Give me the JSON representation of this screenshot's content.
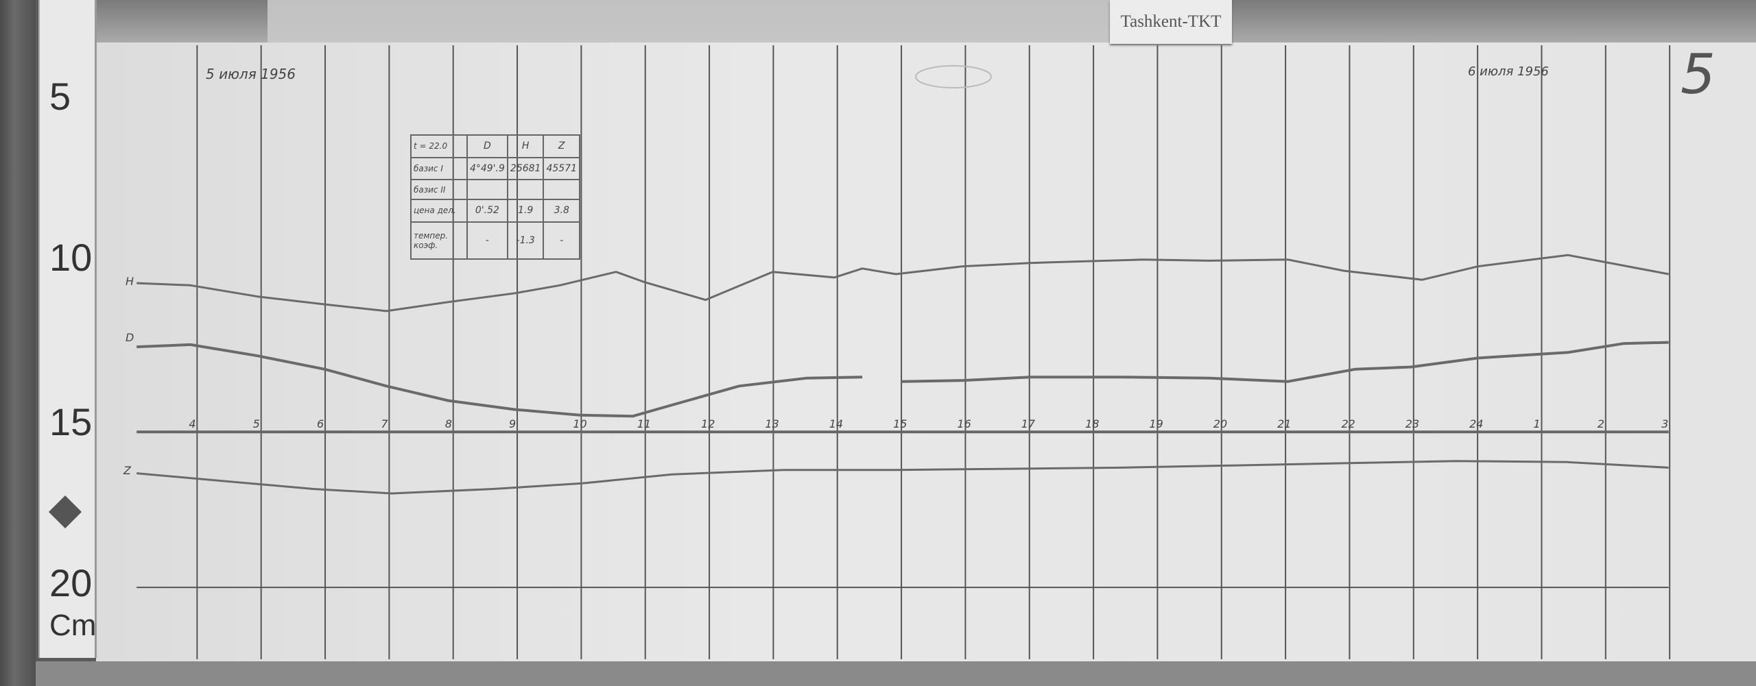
{
  "station_label": "Tashkent-TKT",
  "sheet_number": "5",
  "ruler": {
    "marks": [
      "5",
      "10",
      "15",
      "20"
    ],
    "unit": "Cm"
  },
  "dates": {
    "start": "5 июля 1956",
    "end": "6 июля 1956"
  },
  "trace_labels": {
    "H": "H",
    "D": "D",
    "Z": "Z"
  },
  "hour_labels": [
    "4",
    "5",
    "6",
    "7",
    "8",
    "9",
    "10",
    "11",
    "12",
    "13",
    "14",
    "15",
    "16",
    "17",
    "18",
    "19",
    "20",
    "21",
    "22",
    "23",
    "24",
    "1",
    "2",
    "3"
  ],
  "table": {
    "header": [
      "t = 22.0",
      "D",
      "H",
      "Z"
    ],
    "rows": [
      [
        "базис I",
        "4°49'.9",
        "25681",
        "45571"
      ],
      [
        "базис II",
        "",
        "",
        ""
      ],
      [
        "цена дел.",
        "0'.52",
        "1.9",
        "3.8"
      ],
      [
        "темпер. коэф.",
        "-",
        "-1.3",
        "-"
      ]
    ]
  },
  "colors": {
    "trace": "#6a6a6a",
    "grid": "#555555",
    "paper": "#e4e4e4"
  }
}
